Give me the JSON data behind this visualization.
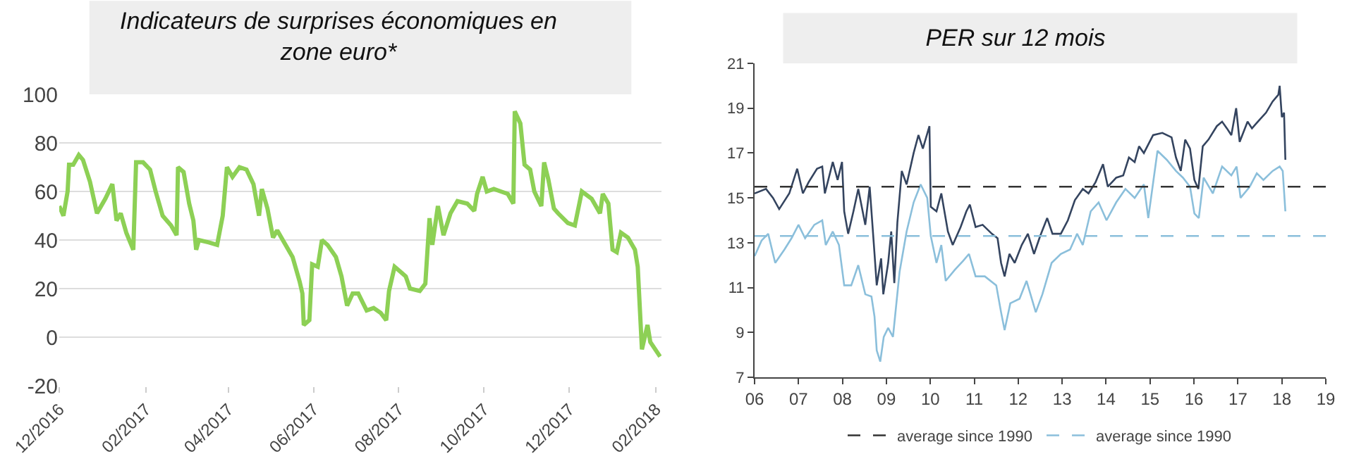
{
  "chart_data": [
    {
      "type": "line",
      "title": "Indicateurs de surprises économiques en zone euro*",
      "x": [
        "2016-12-01",
        "2016-12-04",
        "2016-12-07",
        "2016-12-08",
        "2016-12-11",
        "2016-12-15",
        "2016-12-18",
        "2016-12-23",
        "2016-12-28",
        "2017-01-03",
        "2017-01-08",
        "2017-01-11",
        "2017-01-14",
        "2017-01-18",
        "2017-01-23",
        "2017-01-25",
        "2017-01-30",
        "2017-02-04",
        "2017-02-08",
        "2017-02-13",
        "2017-02-19",
        "2017-02-23",
        "2017-02-24",
        "2017-02-28",
        "2017-03-04",
        "2017-03-07",
        "2017-03-09",
        "2017-03-11",
        "2017-03-18",
        "2017-03-24",
        "2017-03-28",
        "2017-03-31",
        "2017-04-04",
        "2017-04-09",
        "2017-04-14",
        "2017-04-19",
        "2017-04-23",
        "2017-04-25",
        "2017-04-29",
        "2017-05-03",
        "2017-05-06",
        "2017-05-12",
        "2017-05-17",
        "2017-05-22",
        "2017-05-24",
        "2017-05-25",
        "2017-05-29",
        "2017-05-31",
        "2017-06-04",
        "2017-06-07",
        "2017-06-11",
        "2017-06-17",
        "2017-06-21",
        "2017-06-25",
        "2017-06-29",
        "2017-07-03",
        "2017-07-09",
        "2017-07-14",
        "2017-07-19",
        "2017-07-23",
        "2017-07-25",
        "2017-07-29",
        "2017-08-02",
        "2017-08-06",
        "2017-08-09",
        "2017-08-16",
        "2017-08-20",
        "2017-08-23",
        "2017-08-25",
        "2017-08-29",
        "2017-09-02",
        "2017-09-07",
        "2017-09-12",
        "2017-09-19",
        "2017-09-24",
        "2017-09-26",
        "2017-09-30",
        "2017-10-03",
        "2017-10-08",
        "2017-10-13",
        "2017-10-18",
        "2017-10-22",
        "2017-10-23",
        "2017-10-27",
        "2017-10-30",
        "2017-11-03",
        "2017-11-06",
        "2017-11-11",
        "2017-11-13",
        "2017-11-16",
        "2017-11-20",
        "2017-11-23",
        "2017-11-30",
        "2017-12-05",
        "2017-12-10",
        "2017-12-17",
        "2017-12-23",
        "2017-12-25",
        "2017-12-29",
        "2018-01-01",
        "2018-01-04",
        "2018-01-07",
        "2018-01-12",
        "2018-01-17",
        "2018-01-19",
        "2018-01-22",
        "2018-01-26",
        "2018-01-28",
        "2018-02-04"
      ],
      "series": [
        {
          "color": "#8dd055",
          "values": [
            54,
            50,
            60,
            71,
            71,
            75,
            73,
            64,
            51,
            57,
            63,
            48,
            51,
            43,
            36,
            72,
            72,
            69,
            60,
            50,
            46,
            42,
            70,
            68,
            55,
            48,
            36,
            40,
            39,
            38,
            50,
            70,
            66,
            70,
            69,
            63,
            50,
            61,
            53,
            41,
            44,
            38,
            33,
            23,
            18,
            5,
            7,
            30,
            29,
            40,
            38,
            33,
            25,
            13,
            18,
            18,
            11,
            12,
            10,
            7,
            19,
            29,
            27,
            25,
            20,
            19,
            22,
            49,
            38,
            54,
            42,
            51,
            56,
            55,
            52,
            59,
            66,
            60,
            61,
            60,
            59,
            55,
            93,
            88,
            71,
            69,
            60,
            54,
            72,
            65,
            53,
            51,
            47,
            46,
            60,
            57,
            51,
            59,
            55,
            36,
            35,
            43,
            41,
            36,
            29,
            -5,
            5,
            -2,
            -8
          ]
        }
      ],
      "xlim": [
        "2016-12-01",
        "2018-02-05"
      ],
      "xticks": [
        {
          "value": "2016-12-01",
          "label": "12/2016"
        },
        {
          "value": "2017-02-01",
          "label": "02/2017"
        },
        {
          "value": "2017-04-01",
          "label": "04/2017"
        },
        {
          "value": "2017-06-01",
          "label": "06/2017"
        },
        {
          "value": "2017-08-01",
          "label": "08/2017"
        },
        {
          "value": "2017-10-01",
          "label": "10/2017"
        },
        {
          "value": "2017-12-01",
          "label": "12/2017"
        },
        {
          "value": "2018-02-01",
          "label": "02/2018"
        }
      ],
      "ylim": [
        -20,
        100
      ],
      "yticks": [
        -20,
        0,
        20,
        40,
        60,
        80,
        100
      ],
      "grid": "y"
    },
    {
      "type": "line",
      "title": "PER sur 12 mois",
      "series": [
        {
          "color": "#34445f",
          "x": [
            2006.0,
            2006.26,
            2006.42,
            2006.56,
            2006.79,
            2006.97,
            2007.1,
            2007.23,
            2007.42,
            2007.54,
            2007.6,
            2007.78,
            2007.89,
            2007.99,
            2008.04,
            2008.13,
            2008.25,
            2008.36,
            2008.52,
            2008.62,
            2008.73,
            2008.78,
            2008.88,
            2008.93,
            2009.04,
            2009.11,
            2009.18,
            2009.25,
            2009.35,
            2009.46,
            2009.62,
            2009.73,
            2009.83,
            2009.98,
            2010.01,
            2010.14,
            2010.25,
            2010.4,
            2010.51,
            2010.69,
            2010.82,
            2010.9,
            2011.03,
            2011.19,
            2011.4,
            2011.53,
            2011.61,
            2011.69,
            2011.8,
            2011.92,
            2012.08,
            2012.22,
            2012.36,
            2012.5,
            2012.66,
            2012.78,
            2012.97,
            2013.13,
            2013.29,
            2013.47,
            2013.6,
            2013.76,
            2013.93,
            2014.04,
            2014.23,
            2014.39,
            2014.52,
            2014.65,
            2014.75,
            2014.86,
            2015.07,
            2015.28,
            2015.49,
            2015.59,
            2015.7,
            2015.8,
            2015.91,
            2016.01,
            2016.1,
            2016.2,
            2016.33,
            2016.52,
            2016.64,
            2016.75,
            2016.85,
            2016.96,
            2017.04,
            2017.22,
            2017.32,
            2017.5,
            2017.64,
            2017.79,
            2017.92,
            2017.95,
            2018.0,
            2018.05,
            2018.08
          ],
          "values": [
            15.2,
            15.4,
            15.0,
            14.5,
            15.2,
            16.3,
            15.2,
            15.7,
            16.3,
            16.4,
            15.2,
            16.6,
            15.8,
            16.6,
            14.4,
            13.4,
            14.4,
            15.4,
            13.8,
            15.5,
            12.5,
            11.1,
            12.3,
            10.7,
            12.1,
            13.5,
            11.2,
            13.9,
            16.2,
            15.6,
            17.0,
            17.8,
            17.2,
            18.2,
            14.6,
            14.4,
            15.2,
            13.5,
            12.9,
            13.7,
            14.4,
            14.7,
            13.7,
            13.8,
            13.4,
            13.2,
            12.1,
            11.5,
            12.5,
            12.1,
            12.9,
            13.4,
            12.5,
            13.3,
            14.1,
            13.4,
            13.4,
            14.0,
            14.9,
            15.4,
            15.2,
            15.7,
            16.5,
            15.5,
            15.9,
            16.0,
            16.8,
            16.6,
            17.3,
            17.0,
            17.8,
            17.9,
            17.7,
            16.8,
            16.2,
            17.6,
            17.2,
            15.8,
            15.4,
            17.3,
            17.6,
            18.2,
            18.4,
            18.1,
            17.8,
            19.0,
            17.5,
            18.4,
            18.1,
            18.5,
            18.8,
            19.3,
            19.6,
            20.0,
            18.6,
            18.8,
            16.7
          ]
        },
        {
          "color": "#8bbfdb",
          "x": [
            2006.0,
            2006.16,
            2006.31,
            2006.47,
            2006.68,
            2006.84,
            2007.0,
            2007.15,
            2007.36,
            2007.54,
            2007.62,
            2007.78,
            2007.92,
            2008.04,
            2008.2,
            2008.36,
            2008.52,
            2008.66,
            2008.73,
            2008.78,
            2008.86,
            2008.94,
            2009.04,
            2009.15,
            2009.3,
            2009.46,
            2009.62,
            2009.78,
            2009.93,
            2010.01,
            2010.14,
            2010.25,
            2010.35,
            2010.56,
            2010.75,
            2010.88,
            2011.03,
            2011.24,
            2011.5,
            2011.61,
            2011.69,
            2011.82,
            2012.03,
            2012.19,
            2012.4,
            2012.55,
            2012.76,
            2012.97,
            2013.18,
            2013.34,
            2013.47,
            2013.65,
            2013.83,
            2014.01,
            2014.23,
            2014.44,
            2014.65,
            2014.86,
            2014.96,
            2015.17,
            2015.38,
            2015.59,
            2015.75,
            2015.91,
            2016.01,
            2016.11,
            2016.22,
            2016.43,
            2016.64,
            2016.85,
            2016.97,
            2017.06,
            2017.27,
            2017.43,
            2017.58,
            2017.79,
            2017.95,
            2018.02,
            2018.08
          ],
          "values": [
            12.4,
            13.1,
            13.4,
            12.1,
            12.7,
            13.2,
            13.8,
            13.2,
            13.8,
            14.0,
            12.9,
            13.5,
            12.9,
            11.1,
            11.1,
            12.0,
            10.7,
            10.6,
            9.7,
            8.2,
            7.7,
            8.8,
            9.2,
            8.8,
            11.7,
            13.5,
            14.8,
            15.6,
            15.0,
            13.3,
            12.1,
            12.9,
            11.3,
            11.8,
            12.2,
            12.5,
            11.5,
            11.5,
            11.1,
            9.9,
            9.1,
            10.3,
            10.5,
            11.3,
            9.9,
            10.7,
            12.1,
            12.5,
            12.7,
            13.4,
            12.9,
            14.4,
            14.8,
            14.0,
            14.8,
            15.4,
            15.0,
            15.6,
            14.1,
            17.1,
            16.7,
            16.2,
            15.9,
            15.5,
            14.3,
            14.1,
            15.9,
            15.2,
            16.4,
            16.0,
            16.4,
            15.0,
            15.5,
            16.1,
            15.8,
            16.2,
            16.4,
            16.2,
            14.4
          ]
        }
      ],
      "ref_lines": [
        {
          "axis": "y",
          "value": 15.5,
          "label": "average since 1990",
          "color": "#333333",
          "line_style": "dashed"
        },
        {
          "axis": "y",
          "value": 13.3,
          "label": "average since 1990",
          "color": "#8bbfdb",
          "line_style": "dashed"
        }
      ],
      "xlim": [
        2006,
        2019
      ],
      "xticks": [
        {
          "value": 2006,
          "label": "06"
        },
        {
          "value": 2007,
          "label": "07"
        },
        {
          "value": 2008,
          "label": "08"
        },
        {
          "value": 2009,
          "label": "09"
        },
        {
          "value": 2010,
          "label": "10"
        },
        {
          "value": 2011,
          "label": "11"
        },
        {
          "value": 2012,
          "label": "12"
        },
        {
          "value": 2013,
          "label": "13"
        },
        {
          "value": 2014,
          "label": "14"
        },
        {
          "value": 2015,
          "label": "15"
        },
        {
          "value": 2016,
          "label": "16"
        },
        {
          "value": 2017,
          "label": "17"
        },
        {
          "value": 2018,
          "label": "18"
        },
        {
          "value": 2019,
          "label": "19"
        }
      ],
      "ylim": [
        7,
        21
      ],
      "yticks": [
        7,
        9,
        11,
        13,
        15,
        17,
        19,
        21
      ],
      "legend": "bottom"
    }
  ]
}
